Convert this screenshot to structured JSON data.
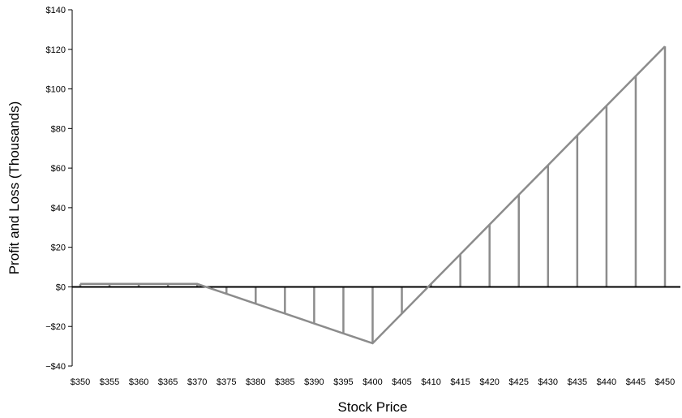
{
  "chart_data": {
    "type": "line",
    "title": "",
    "xlabel": "Stock Price",
    "ylabel": "Profit and Loss (Thousands)",
    "x": [
      350,
      355,
      360,
      365,
      370,
      375,
      380,
      385,
      390,
      395,
      400,
      405,
      410,
      415,
      420,
      425,
      430,
      435,
      440,
      445,
      450
    ],
    "x_tick_labels": [
      "$350",
      "$355",
      "$360",
      "$365",
      "$370",
      "$375",
      "$380",
      "$385",
      "$390",
      "$395",
      "$400",
      "$405",
      "$410",
      "$415",
      "$420",
      "$425",
      "$430",
      "$435",
      "$440",
      "$445",
      "$450"
    ],
    "y": [
      1.5,
      1.5,
      1.5,
      1.5,
      1.5,
      -3.5,
      -8.5,
      -13.5,
      -18.5,
      -23.5,
      -28.5,
      -13.5,
      1.5,
      16.5,
      31.5,
      46.5,
      61.5,
      76.5,
      91.5,
      106.5,
      121.5
    ],
    "ylim": [
      -40,
      140
    ],
    "y_ticks": [
      -40,
      -20,
      0,
      20,
      40,
      60,
      80,
      100,
      120,
      140
    ],
    "y_tick_labels": [
      "−$40",
      "−$20",
      "$0",
      "$20",
      "$40",
      "$60",
      "$80",
      "$100",
      "$120",
      "$140"
    ],
    "grid": false,
    "legend": "none",
    "colors": {
      "line": "#8c8c8c",
      "drop_lines": "#8c8c8c",
      "zero_line": "#000000",
      "axis": "#000000"
    }
  }
}
